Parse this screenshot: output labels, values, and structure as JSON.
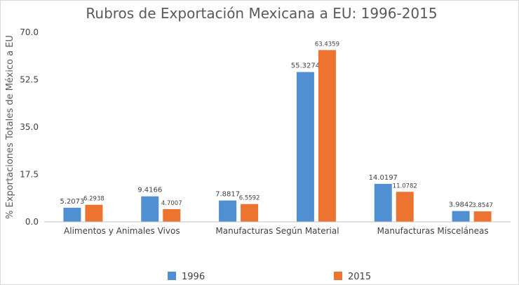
{
  "chart_data": {
    "type": "bar",
    "title": "Rubros de Exportación Mexicana a EU: 1996-2015",
    "xlabel": "",
    "ylabel": "% Exportaciones Totales de México a EU",
    "ylim": [
      0,
      70
    ],
    "yticks": [
      "0.0",
      "17.5",
      "35.0",
      "52.5",
      "70.0"
    ],
    "categories": [
      "Alimentos y Animales Vivos",
      "",
      "Manufacturas Según Material",
      "",
      "Manufacturas Misceláneas",
      ""
    ],
    "series": [
      {
        "name": "1996",
        "color": "#4f8fd2",
        "values": [
          5.2073,
          9.4166,
          7.8817,
          55.3274,
          14.0197,
          3.9842
        ],
        "labels": [
          "5.2073",
          "9.4166",
          "7.8817",
          "55.3274",
          "14.0197",
          "3.9842"
        ]
      },
      {
        "name": "2015",
        "color": "#ed7330",
        "values": [
          6.2938,
          4.7007,
          6.5592,
          63.4359,
          11.0782,
          3.8547
        ],
        "labels": [
          "6.2938",
          "4.7007",
          "6.5592",
          "63.4359",
          "11.0782",
          "3.8547"
        ]
      }
    ],
    "grid": false,
    "legend_position": "bottom"
  }
}
